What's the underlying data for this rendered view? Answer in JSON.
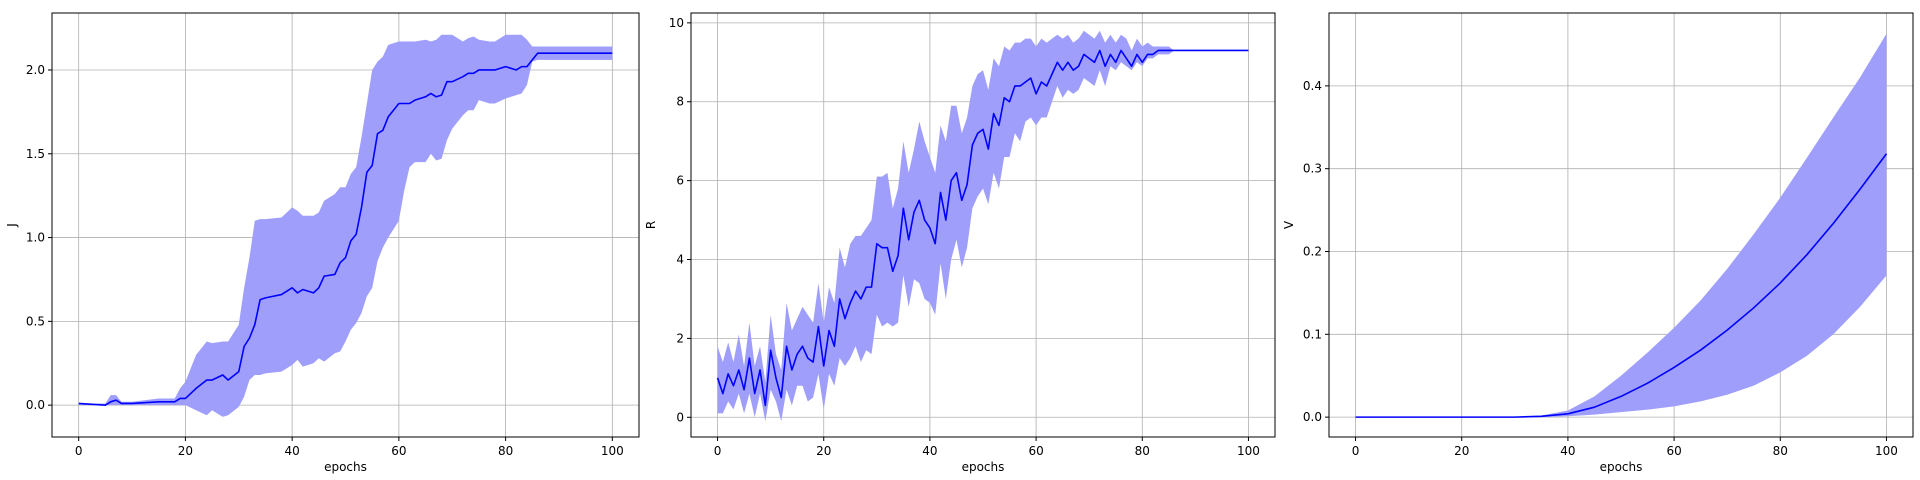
{
  "chart_data": [
    {
      "type": "line",
      "xlabel": "epochs",
      "ylabel": "J",
      "xlim": [
        -5,
        105
      ],
      "ylim": [
        -0.19,
        2.34
      ],
      "xticks": [
        0,
        20,
        40,
        60,
        80,
        100
      ],
      "yticks": [
        0.0,
        0.5,
        1.0,
        1.5,
        2.0
      ],
      "ytick_labels": [
        "0.0",
        "0.5",
        "1.0",
        "1.5",
        "2.0"
      ],
      "grid": true,
      "colors": {
        "line": "#0000ff",
        "band": "#9f9ffb"
      },
      "series": [
        {
          "x": [
            0,
            5,
            6,
            7,
            8,
            10,
            15,
            18,
            19,
            20,
            22,
            24,
            25,
            27,
            28,
            30,
            31,
            32,
            33,
            34,
            35,
            38,
            40,
            41,
            42,
            44,
            45,
            46,
            48,
            49,
            50,
            51,
            52,
            53,
            54,
            55,
            56,
            57,
            58,
            60,
            61,
            62,
            63,
            65,
            66,
            67,
            68,
            69,
            70,
            72,
            73,
            74,
            75,
            77,
            78,
            80,
            82,
            83,
            84,
            85,
            86,
            100
          ],
          "values": [
            0.01,
            0.0,
            0.02,
            0.03,
            0.01,
            0.01,
            0.02,
            0.02,
            0.04,
            0.04,
            0.1,
            0.15,
            0.15,
            0.18,
            0.15,
            0.2,
            0.35,
            0.4,
            0.48,
            0.63,
            0.64,
            0.66,
            0.7,
            0.67,
            0.69,
            0.67,
            0.7,
            0.77,
            0.78,
            0.85,
            0.88,
            0.98,
            1.02,
            1.18,
            1.39,
            1.43,
            1.62,
            1.64,
            1.72,
            1.8,
            1.8,
            1.8,
            1.82,
            1.84,
            1.86,
            1.84,
            1.85,
            1.93,
            1.93,
            1.96,
            1.98,
            1.98,
            2.0,
            2.0,
            2.0,
            2.02,
            2.0,
            2.02,
            2.02,
            2.06,
            2.1,
            2.1
          ],
          "lower": [
            0.0,
            0.0,
            0.0,
            0.0,
            0.0,
            0.0,
            0.0,
            0.0,
            0.0,
            0.0,
            -0.03,
            -0.06,
            -0.03,
            -0.07,
            -0.06,
            -0.01,
            0.05,
            0.15,
            0.18,
            0.18,
            0.19,
            0.2,
            0.24,
            0.27,
            0.23,
            0.25,
            0.28,
            0.26,
            0.31,
            0.32,
            0.38,
            0.45,
            0.49,
            0.55,
            0.65,
            0.7,
            0.86,
            0.94,
            1.0,
            1.1,
            1.28,
            1.42,
            1.45,
            1.45,
            1.5,
            1.46,
            1.47,
            1.58,
            1.65,
            1.73,
            1.76,
            1.76,
            1.82,
            1.8,
            1.8,
            1.83,
            1.85,
            1.86,
            1.91,
            2.05,
            2.06,
            2.06
          ],
          "upper": [
            0.01,
            0.01,
            0.06,
            0.06,
            0.02,
            0.02,
            0.04,
            0.04,
            0.1,
            0.14,
            0.3,
            0.38,
            0.37,
            0.38,
            0.38,
            0.48,
            0.7,
            0.88,
            1.1,
            1.11,
            1.11,
            1.12,
            1.18,
            1.16,
            1.13,
            1.13,
            1.15,
            1.22,
            1.26,
            1.3,
            1.3,
            1.38,
            1.42,
            1.6,
            1.8,
            2.0,
            2.05,
            2.08,
            2.15,
            2.17,
            2.17,
            2.17,
            2.17,
            2.18,
            2.17,
            2.18,
            2.21,
            2.21,
            2.21,
            2.17,
            2.19,
            2.2,
            2.18,
            2.17,
            2.17,
            2.21,
            2.21,
            2.21,
            2.18,
            2.14,
            2.14,
            2.14
          ]
        }
      ]
    },
    {
      "type": "line",
      "xlabel": "epochs",
      "ylabel": "R",
      "xlim": [
        -5,
        105
      ],
      "ylim": [
        -0.5,
        10.25
      ],
      "xticks": [
        0,
        20,
        40,
        60,
        80,
        100
      ],
      "yticks": [
        0,
        2,
        4,
        6,
        8,
        10
      ],
      "ytick_labels": [
        "0",
        "2",
        "4",
        "6",
        "8",
        "10"
      ],
      "grid": true,
      "colors": {
        "line": "#0000ff",
        "band": "#9f9ffb"
      },
      "series": [
        {
          "x": [
            0,
            1,
            2,
            3,
            4,
            5,
            6,
            7,
            8,
            9,
            10,
            11,
            12,
            13,
            14,
            15,
            16,
            17,
            18,
            19,
            20,
            21,
            22,
            23,
            24,
            25,
            26,
            27,
            28,
            29,
            30,
            31,
            32,
            33,
            34,
            35,
            36,
            37,
            38,
            39,
            40,
            41,
            42,
            43,
            44,
            45,
            46,
            47,
            48,
            49,
            50,
            51,
            52,
            53,
            54,
            55,
            56,
            57,
            58,
            59,
            60,
            61,
            62,
            63,
            64,
            65,
            66,
            67,
            68,
            69,
            70,
            71,
            72,
            73,
            74,
            75,
            76,
            77,
            78,
            79,
            80,
            81,
            82,
            83,
            84,
            85,
            86,
            100
          ],
          "values": [
            1.0,
            0.6,
            1.1,
            0.8,
            1.2,
            0.7,
            1.5,
            0.6,
            1.2,
            0.3,
            1.7,
            1.0,
            0.5,
            1.8,
            1.2,
            1.6,
            1.8,
            1.5,
            1.4,
            2.3,
            1.3,
            2.2,
            1.8,
            3.0,
            2.5,
            2.9,
            3.2,
            3.0,
            3.3,
            3.3,
            4.4,
            4.3,
            4.3,
            3.7,
            4.1,
            5.3,
            4.5,
            5.2,
            5.5,
            5.0,
            4.8,
            4.4,
            5.7,
            5.0,
            6.0,
            6.2,
            5.5,
            5.9,
            6.9,
            7.2,
            7.3,
            6.8,
            7.7,
            7.4,
            8.1,
            8.0,
            8.4,
            8.4,
            8.5,
            8.6,
            8.2,
            8.5,
            8.4,
            8.7,
            9.0,
            8.8,
            9.0,
            8.8,
            8.9,
            9.2,
            9.1,
            9.0,
            9.3,
            8.9,
            9.2,
            9.0,
            9.3,
            9.1,
            8.9,
            9.2,
            9.0,
            9.2,
            9.2,
            9.3,
            9.3,
            9.3,
            9.3,
            9.3
          ],
          "lower": [
            0.1,
            0.1,
            0.4,
            0.2,
            0.6,
            0.1,
            0.6,
            0.0,
            0.6,
            -0.1,
            0.7,
            0.4,
            -0.1,
            0.7,
            0.3,
            0.8,
            0.8,
            0.4,
            0.5,
            1.1,
            0.2,
            1.1,
            0.8,
            1.5,
            1.3,
            1.5,
            1.8,
            1.4,
            1.7,
            1.6,
            2.6,
            2.3,
            2.4,
            2.3,
            2.4,
            3.6,
            2.8,
            3.5,
            3.4,
            3.0,
            2.9,
            2.6,
            3.9,
            3.0,
            4.0,
            4.5,
            3.8,
            4.3,
            5.3,
            5.6,
            5.8,
            5.4,
            6.2,
            5.8,
            6.6,
            6.6,
            7.2,
            7.0,
            7.5,
            7.6,
            7.4,
            7.6,
            7.6,
            8.0,
            8.4,
            8.1,
            8.3,
            8.2,
            8.3,
            8.6,
            8.5,
            8.4,
            8.8,
            8.4,
            8.9,
            8.8,
            9.0,
            8.9,
            8.8,
            9.0,
            8.9,
            9.1,
            9.1,
            9.2,
            9.2,
            9.2,
            9.3,
            9.3
          ],
          "upper": [
            1.8,
            1.4,
            1.9,
            1.4,
            2.1,
            1.3,
            2.4,
            1.3,
            1.8,
            0.9,
            2.6,
            1.6,
            1.2,
            2.9,
            2.2,
            2.5,
            2.8,
            2.6,
            2.4,
            3.4,
            2.4,
            3.3,
            2.9,
            4.3,
            3.8,
            4.4,
            4.6,
            4.6,
            4.8,
            5.0,
            6.1,
            6.1,
            6.2,
            5.3,
            5.8,
            7.0,
            6.2,
            6.8,
            7.5,
            7.0,
            6.6,
            6.2,
            7.4,
            7.0,
            7.9,
            7.9,
            7.2,
            7.6,
            8.4,
            8.7,
            8.8,
            8.3,
            9.1,
            8.9,
            9.4,
            9.3,
            9.5,
            9.5,
            9.6,
            9.6,
            9.4,
            9.6,
            9.5,
            9.6,
            9.7,
            9.6,
            9.7,
            9.5,
            9.6,
            9.8,
            9.7,
            9.6,
            9.8,
            9.5,
            9.7,
            9.5,
            9.7,
            9.6,
            9.3,
            9.6,
            9.4,
            9.5,
            9.4,
            9.4,
            9.4,
            9.4,
            9.3,
            9.3
          ]
        }
      ]
    },
    {
      "type": "line",
      "xlabel": "epochs",
      "ylabel": "V",
      "xlim": [
        -5,
        105
      ],
      "ylim": [
        -0.024,
        0.488
      ],
      "xticks": [
        0,
        20,
        40,
        60,
        80,
        100
      ],
      "yticks": [
        0.0,
        0.1,
        0.2,
        0.3,
        0.4
      ],
      "ytick_labels": [
        "0.0",
        "0.1",
        "0.2",
        "0.3",
        "0.4"
      ],
      "grid": true,
      "colors": {
        "line": "#0000ff",
        "band": "#9f9ffb"
      },
      "series": [
        {
          "x": [
            0,
            10,
            20,
            30,
            35,
            40,
            45,
            50,
            55,
            60,
            65,
            70,
            75,
            80,
            85,
            90,
            95,
            100
          ],
          "values": [
            0,
            0,
            0,
            0,
            0.001,
            0.004,
            0.012,
            0.025,
            0.041,
            0.06,
            0.081,
            0.105,
            0.132,
            0.162,
            0.196,
            0.234,
            0.275,
            0.318
          ],
          "lower": [
            0,
            0,
            0,
            0,
            0.0,
            0.001,
            0.003,
            0.006,
            0.009,
            0.013,
            0.019,
            0.027,
            0.038,
            0.054,
            0.074,
            0.1,
            0.133,
            0.171
          ],
          "upper": [
            0,
            0,
            0,
            0,
            0.002,
            0.008,
            0.025,
            0.05,
            0.078,
            0.108,
            0.141,
            0.179,
            0.221,
            0.265,
            0.313,
            0.362,
            0.41,
            0.463
          ]
        }
      ]
    }
  ]
}
